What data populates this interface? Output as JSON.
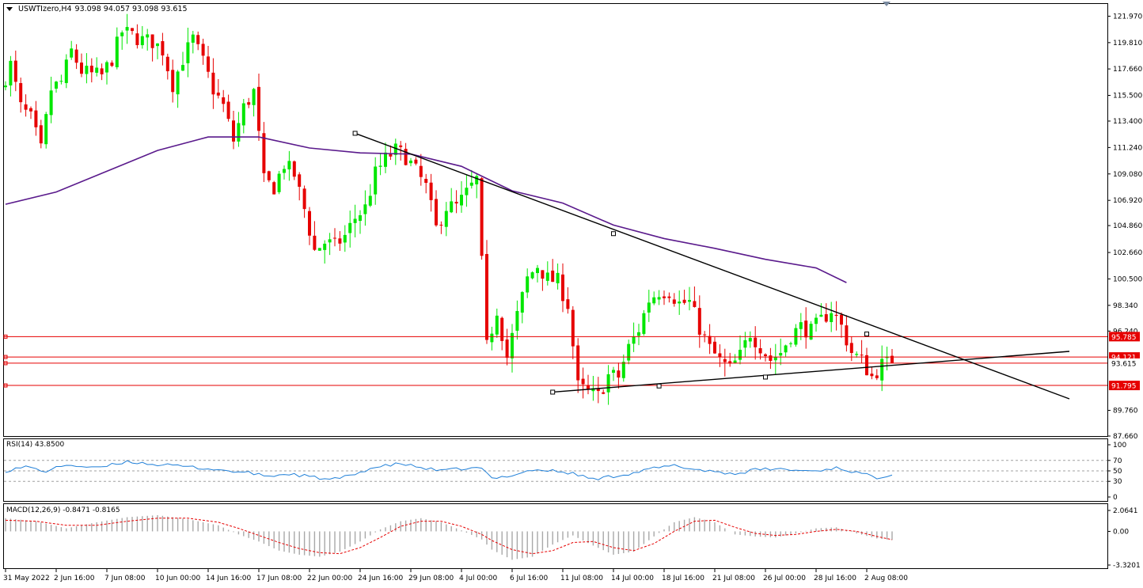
{
  "header": {
    "symbol": "USWTIzero,H4",
    "ohlc": "93.098 94.057 93.098 93.615"
  },
  "indicators": {
    "rsi_label": "RSI(14) 43.8500",
    "macd_label": "MACD(12,26,9) -0.8471 -0.8165"
  },
  "colors": {
    "bull": "#00e600",
    "bear": "#e60000",
    "ma": "#5a1a8c",
    "trendline": "#000000",
    "hline": "#e60000",
    "rsi": "#1f7fd8",
    "macd_hist": "#a8a8a8",
    "macd_signal": "#e60000"
  },
  "chart_data": [
    {
      "type": "candlestick",
      "panel": "price",
      "ylim": [
        87.66,
        122.97
      ],
      "yticks": [
        "121.970",
        "119.810",
        "117.660",
        "115.500",
        "113.400",
        "111.240",
        "109.080",
        "106.920",
        "104.860",
        "102.660",
        "100.500",
        "98.340",
        "96.240",
        "89.760",
        "87.660"
      ],
      "xlim": [
        0,
        176
      ],
      "xticks": [
        {
          "x": 0,
          "label": "31 May 2022"
        },
        {
          "x": 10,
          "label": "2 Jun 16:00"
        },
        {
          "x": 20,
          "label": "7 Jun 08:00"
        },
        {
          "x": 30,
          "label": "10 Jun 00:00"
        },
        {
          "x": 40,
          "label": "14 Jun 16:00"
        },
        {
          "x": 50,
          "label": "17 Jun 08:00"
        },
        {
          "x": 60,
          "label": "22 Jun 00:00"
        },
        {
          "x": 70,
          "label": "24 Jun 16:00"
        },
        {
          "x": 80,
          "label": "29 Jun 08:00"
        },
        {
          "x": 90,
          "label": "4 Jul 00:00"
        },
        {
          "x": 100,
          "label": "6 Jul 16:00"
        },
        {
          "x": 110,
          "label": "11 Jul 08:00"
        },
        {
          "x": 120,
          "label": "14 Jul 00:00"
        },
        {
          "x": 130,
          "label": "18 Jul 16:00"
        },
        {
          "x": 140,
          "label": "21 Jul 08:00"
        },
        {
          "x": 150,
          "label": "26 Jul 00:00"
        },
        {
          "x": 160,
          "label": "28 Jul 16:00"
        },
        {
          "x": 170,
          "label": "2 Aug 08:00"
        }
      ],
      "anchors": [
        [
          0,
          116.0
        ],
        [
          2,
          118.0
        ],
        [
          4,
          114.5
        ],
        [
          6,
          113.6
        ],
        [
          8,
          111.0
        ],
        [
          10,
          116.0
        ],
        [
          12,
          116.6
        ],
        [
          14,
          119.1
        ],
        [
          16,
          117.5
        ],
        [
          18,
          117.2
        ],
        [
          20,
          117.1
        ],
        [
          22,
          118.5
        ],
        [
          24,
          120.7
        ],
        [
          26,
          120.4
        ],
        [
          28,
          120.0
        ],
        [
          30,
          119.9
        ],
        [
          32,
          119.2
        ],
        [
          34,
          116.4
        ],
        [
          36,
          118.5
        ],
        [
          38,
          120.1
        ],
        [
          40,
          118.2
        ],
        [
          42,
          116.0
        ],
        [
          44,
          114.6
        ],
        [
          46,
          111.8
        ],
        [
          48,
          114.5
        ],
        [
          50,
          115.8
        ],
        [
          52,
          108.5
        ],
        [
          54,
          108.0
        ],
        [
          56,
          109.9
        ],
        [
          58,
          109.0
        ],
        [
          60,
          106.2
        ],
        [
          62,
          102.8
        ],
        [
          64,
          103.5
        ],
        [
          66,
          103.2
        ],
        [
          68,
          104.0
        ],
        [
          70,
          105.5
        ],
        [
          72,
          106.3
        ],
        [
          74,
          109.1
        ],
        [
          76,
          110.3
        ],
        [
          78,
          111.0
        ],
        [
          80,
          110.5
        ],
        [
          82,
          109.3
        ],
        [
          84,
          108.0
        ],
        [
          86,
          104.6
        ],
        [
          88,
          106.4
        ],
        [
          90,
          106.4
        ],
        [
          92,
          107.5
        ],
        [
          94,
          108.6
        ],
        [
          96,
          94.9
        ],
        [
          98,
          98.0
        ],
        [
          100,
          94.1
        ],
        [
          102,
          97.5
        ],
        [
          104,
          100.5
        ],
        [
          106,
          101.6
        ],
        [
          108,
          100.5
        ],
        [
          110,
          100.3
        ],
        [
          112,
          98.4
        ],
        [
          114,
          91.7
        ],
        [
          116,
          91.2
        ],
        [
          118,
          90.9
        ],
        [
          120,
          92.6
        ],
        [
          122,
          92.5
        ],
        [
          124,
          94.9
        ],
        [
          126,
          96.4
        ],
        [
          128,
          98.8
        ],
        [
          130,
          99.5
        ],
        [
          132,
          99.5
        ],
        [
          134,
          98.5
        ],
        [
          136,
          98.6
        ],
        [
          138,
          96.5
        ],
        [
          140,
          94.8
        ],
        [
          142,
          93.8
        ],
        [
          144,
          93.1
        ],
        [
          146,
          94.2
        ],
        [
          148,
          96.1
        ],
        [
          150,
          95.0
        ],
        [
          152,
          93.9
        ],
        [
          154,
          94.5
        ],
        [
          156,
          95.9
        ],
        [
          158,
          96.6
        ],
        [
          160,
          96.2
        ],
        [
          162,
          97.1
        ],
        [
          164,
          98.0
        ],
        [
          166,
          96.6
        ],
        [
          168,
          94.5
        ],
        [
          170,
          93.8
        ],
        [
          172,
          92.5
        ],
        [
          174,
          93.5
        ],
        [
          175,
          93.6
        ]
      ],
      "close": 93.615,
      "ma_line": [
        [
          0,
          106.6
        ],
        [
          10,
          107.6
        ],
        [
          20,
          109.3
        ],
        [
          30,
          111.0
        ],
        [
          40,
          112.1
        ],
        [
          50,
          112.1
        ],
        [
          60,
          111.2
        ],
        [
          70,
          110.8
        ],
        [
          80,
          110.7
        ],
        [
          90,
          109.7
        ],
        [
          100,
          107.7
        ],
        [
          110,
          106.7
        ],
        [
          120,
          104.9
        ],
        [
          130,
          103.8
        ],
        [
          140,
          103.0
        ],
        [
          150,
          102.1
        ],
        [
          160,
          101.4
        ],
        [
          166,
          100.2
        ]
      ],
      "trendlines": [
        {
          "name": "descending resistance",
          "points": [
            [
              69,
              112.4
            ],
            [
              120,
              104.2
            ],
            [
              170,
              96.0
            ]
          ],
          "extend_to": [
            210,
            90.7
          ]
        },
        {
          "name": "ascending support",
          "points": [
            [
              108,
              91.25
            ],
            [
              129,
              91.75
            ],
            [
              150,
              92.48
            ]
          ],
          "extend_to": [
            210,
            94.58
          ]
        }
      ],
      "hlines": [
        {
          "value": 95.785,
          "label": "95.785"
        },
        {
          "value": 94.121,
          "label": "94.121"
        },
        {
          "value": 93.615,
          "label": "93.615"
        },
        {
          "value": 91.795,
          "label": "91.795"
        }
      ]
    },
    {
      "type": "line",
      "panel": "rsi",
      "title": "RSI(14) 43.8500",
      "ylim": [
        0,
        100
      ],
      "yticks": [
        "100",
        "70",
        "50",
        "30",
        "0"
      ],
      "levels": [
        70,
        50,
        30
      ],
      "anchors": [
        [
          0,
          50
        ],
        [
          4,
          58
        ],
        [
          8,
          49
        ],
        [
          12,
          62
        ],
        [
          18,
          55
        ],
        [
          24,
          68
        ],
        [
          30,
          62
        ],
        [
          36,
          58
        ],
        [
          40,
          54
        ],
        [
          44,
          50
        ],
        [
          48,
          46
        ],
        [
          52,
          40
        ],
        [
          56,
          44
        ],
        [
          60,
          39
        ],
        [
          64,
          33
        ],
        [
          68,
          40
        ],
        [
          72,
          55
        ],
        [
          78,
          64
        ],
        [
          82,
          56
        ],
        [
          86,
          50
        ],
        [
          90,
          54
        ],
        [
          94,
          55
        ],
        [
          96,
          35
        ],
        [
          100,
          42
        ],
        [
          104,
          52
        ],
        [
          108,
          50
        ],
        [
          112,
          45
        ],
        [
          116,
          34
        ],
        [
          120,
          40
        ],
        [
          124,
          46
        ],
        [
          128,
          55
        ],
        [
          132,
          60
        ],
        [
          136,
          53
        ],
        [
          140,
          49
        ],
        [
          144,
          44
        ],
        [
          148,
          52
        ],
        [
          152,
          54
        ],
        [
          156,
          51
        ],
        [
          160,
          50
        ],
        [
          164,
          56
        ],
        [
          168,
          47
        ],
        [
          172,
          37
        ],
        [
          175,
          44
        ]
      ]
    },
    {
      "type": "bar+line",
      "panel": "macd",
      "title": "MACD(12,26,9) -0.8471 -0.8165",
      "ylim": [
        -3.3201,
        2.0641
      ],
      "yticks": [
        "2.0641",
        "0.00",
        "-3.3201"
      ],
      "hist_anchors": [
        [
          0,
          1.3
        ],
        [
          6,
          1.0
        ],
        [
          12,
          0.3
        ],
        [
          18,
          0.9
        ],
        [
          24,
          1.4
        ],
        [
          30,
          1.6
        ],
        [
          36,
          1.2
        ],
        [
          42,
          0.6
        ],
        [
          46,
          -0.3
        ],
        [
          50,
          -1.0
        ],
        [
          54,
          -1.9
        ],
        [
          58,
          -2.3
        ],
        [
          62,
          -2.5
        ],
        [
          66,
          -2.0
        ],
        [
          70,
          -1.0
        ],
        [
          74,
          0.2
        ],
        [
          78,
          1.0
        ],
        [
          82,
          1.3
        ],
        [
          86,
          0.9
        ],
        [
          90,
          0.1
        ],
        [
          94,
          -0.8
        ],
        [
          96,
          -1.8
        ],
        [
          100,
          -2.8
        ],
        [
          104,
          -2.5
        ],
        [
          108,
          -1.3
        ],
        [
          112,
          -0.4
        ],
        [
          116,
          -1.4
        ],
        [
          120,
          -2.3
        ],
        [
          124,
          -2.0
        ],
        [
          128,
          -0.5
        ],
        [
          132,
          0.9
        ],
        [
          136,
          1.4
        ],
        [
          140,
          0.9
        ],
        [
          144,
          -0.3
        ],
        [
          148,
          -0.5
        ],
        [
          152,
          -0.6
        ],
        [
          156,
          -0.2
        ],
        [
          160,
          0.3
        ],
        [
          164,
          0.4
        ],
        [
          168,
          -0.2
        ],
        [
          172,
          -0.7
        ],
        [
          175,
          -0.85
        ]
      ],
      "signal_anchors": [
        [
          0,
          1.1
        ],
        [
          6,
          1.0
        ],
        [
          12,
          0.6
        ],
        [
          18,
          0.6
        ],
        [
          24,
          1.0
        ],
        [
          30,
          1.3
        ],
        [
          36,
          1.3
        ],
        [
          42,
          0.9
        ],
        [
          46,
          0.3
        ],
        [
          50,
          -0.4
        ],
        [
          54,
          -1.1
        ],
        [
          58,
          -1.7
        ],
        [
          62,
          -2.1
        ],
        [
          66,
          -2.2
        ],
        [
          70,
          -1.6
        ],
        [
          74,
          -0.6
        ],
        [
          78,
          0.5
        ],
        [
          82,
          1.0
        ],
        [
          86,
          1.0
        ],
        [
          90,
          0.5
        ],
        [
          94,
          -0.3
        ],
        [
          96,
          -0.9
        ],
        [
          100,
          -1.8
        ],
        [
          104,
          -2.2
        ],
        [
          108,
          -1.9
        ],
        [
          112,
          -1.1
        ],
        [
          116,
          -1.0
        ],
        [
          120,
          -1.6
        ],
        [
          124,
          -1.9
        ],
        [
          128,
          -1.2
        ],
        [
          132,
          0.0
        ],
        [
          136,
          1.0
        ],
        [
          140,
          1.1
        ],
        [
          144,
          0.4
        ],
        [
          148,
          -0.2
        ],
        [
          152,
          -0.4
        ],
        [
          156,
          -0.3
        ],
        [
          160,
          0.0
        ],
        [
          164,
          0.2
        ],
        [
          168,
          0.0
        ],
        [
          172,
          -0.5
        ],
        [
          175,
          -0.82
        ]
      ]
    }
  ]
}
